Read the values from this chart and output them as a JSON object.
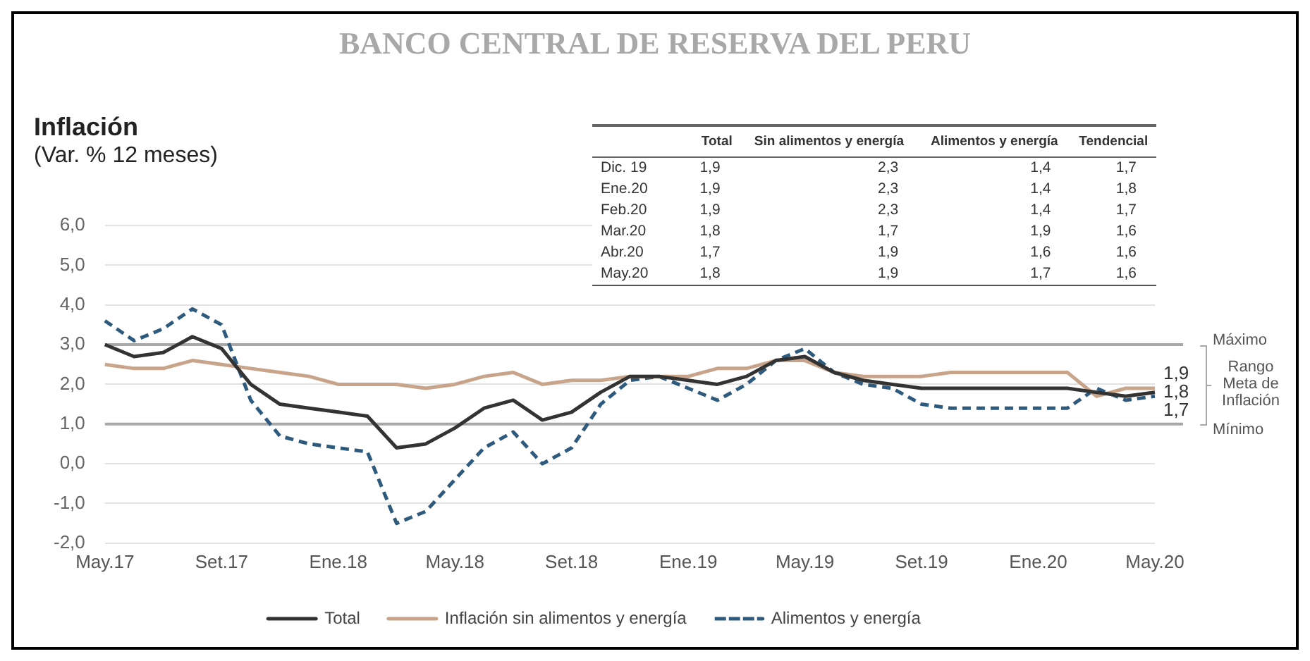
{
  "chart_data": {
    "type": "line",
    "title": "Inflación",
    "subtitle": "(Var. % 12 meses)",
    "categories": [
      "May.17",
      null,
      null,
      null,
      "Set.17",
      null,
      null,
      null,
      "Ene.18",
      null,
      null,
      null,
      "May.18",
      null,
      null,
      null,
      "Set.18",
      null,
      null,
      null,
      "Ene.19",
      null,
      null,
      null,
      "May.19",
      null,
      null,
      null,
      "Set.19",
      null,
      null,
      null,
      "Ene.20",
      null,
      null,
      null,
      "May.20"
    ],
    "series": [
      {
        "name": "Total",
        "color": "#333333",
        "line_style": "solid",
        "values": [
          3.0,
          2.7,
          2.8,
          3.2,
          2.9,
          2.0,
          1.5,
          1.4,
          1.3,
          1.2,
          0.4,
          0.5,
          0.9,
          1.4,
          1.6,
          1.1,
          1.3,
          1.8,
          2.2,
          2.2,
          2.1,
          2.0,
          2.2,
          2.6,
          2.7,
          2.3,
          2.1,
          2.0,
          1.9,
          1.9,
          1.9,
          1.9,
          1.9,
          1.9,
          1.8,
          1.7,
          1.8
        ],
        "value_labels": [
          null,
          null,
          null,
          null,
          null,
          null,
          null,
          null,
          null,
          null,
          null,
          null,
          null,
          null,
          null,
          null,
          null,
          null,
          null,
          null,
          null,
          null,
          null,
          null,
          null,
          null,
          null,
          null,
          null,
          null,
          null,
          null,
          null,
          null,
          null,
          null,
          "1,8"
        ]
      },
      {
        "name": "Inflación sin alimentos y energía",
        "color": "#c8a58a",
        "line_style": "solid",
        "values": [
          2.5,
          2.4,
          2.4,
          2.6,
          2.5,
          2.4,
          2.3,
          2.2,
          2.0,
          2.0,
          2.0,
          1.9,
          2.0,
          2.2,
          2.3,
          2.0,
          2.1,
          2.1,
          2.2,
          2.2,
          2.2,
          2.4,
          2.4,
          2.6,
          2.6,
          2.3,
          2.2,
          2.2,
          2.2,
          2.3,
          2.3,
          2.3,
          2.3,
          2.3,
          1.7,
          1.9,
          1.9
        ],
        "value_labels": [
          null,
          null,
          null,
          null,
          null,
          null,
          null,
          null,
          null,
          null,
          null,
          null,
          null,
          null,
          null,
          null,
          null,
          null,
          null,
          null,
          null,
          null,
          null,
          null,
          null,
          null,
          null,
          null,
          null,
          null,
          null,
          null,
          null,
          null,
          null,
          null,
          "1,9"
        ]
      },
      {
        "name": "Alimentos y energía",
        "color": "#2e5a7e",
        "line_style": "dashed",
        "values": [
          3.6,
          3.1,
          3.4,
          3.9,
          3.5,
          1.6,
          0.7,
          0.5,
          0.4,
          0.3,
          -1.5,
          -1.2,
          -0.4,
          0.4,
          0.8,
          0.0,
          0.4,
          1.5,
          2.1,
          2.2,
          1.9,
          1.6,
          2.0,
          2.6,
          2.9,
          2.3,
          2.0,
          1.9,
          1.5,
          1.4,
          1.4,
          1.4,
          1.4,
          1.4,
          1.9,
          1.6,
          1.7
        ],
        "value_labels": [
          null,
          null,
          null,
          null,
          null,
          null,
          null,
          null,
          null,
          null,
          null,
          null,
          null,
          null,
          null,
          null,
          null,
          null,
          null,
          null,
          null,
          null,
          null,
          null,
          null,
          null,
          null,
          null,
          null,
          null,
          null,
          null,
          null,
          null,
          null,
          null,
          "1,7"
        ]
      }
    ],
    "ylim": [
      -2,
      6
    ],
    "yticks": [
      {
        "value": -2,
        "label": "-2,0"
      },
      {
        "value": -1,
        "label": "-1,0"
      },
      {
        "value": 0,
        "label": "0,0"
      },
      {
        "value": 1,
        "label": "1,0"
      },
      {
        "value": 2,
        "label": "2,0"
      },
      {
        "value": 3,
        "label": "3,0"
      },
      {
        "value": 4,
        "label": "4,0"
      },
      {
        "value": 5,
        "label": "5,0"
      },
      {
        "value": 6,
        "label": "6,0"
      }
    ],
    "grid": "y",
    "legend": "bottom",
    "ref_lines": [
      {
        "axis": "y",
        "value": 3,
        "label": "Máximo",
        "color": "#a8a8a8"
      },
      {
        "axis": "y",
        "value": 1,
        "label": "Mínimo",
        "color": "#a8a8a8"
      }
    ],
    "annotations": [
      "BANCO CENTRAL DE RESERVA DEL PERU",
      "Rango Meta de Inflación",
      "Total",
      "Sin alimentos y energía",
      "Alimentos y energía",
      "Tendencial",
      "Dic. 19",
      "1,9",
      "2,3",
      "1,4",
      "1,7",
      "Ene.20",
      "1,9",
      "2,3",
      "1,4",
      "1,8",
      "Feb.20",
      "1,9",
      "2,3",
      "1,4",
      "1,7",
      "Mar.20",
      "1,8",
      "1,7",
      "1,9",
      "1,6",
      "Abr.20",
      "1,7",
      "1,9",
      "1,6",
      "1,6",
      "May.20",
      "1,8",
      "1,9",
      "1,7",
      "1,6"
    ]
  }
}
